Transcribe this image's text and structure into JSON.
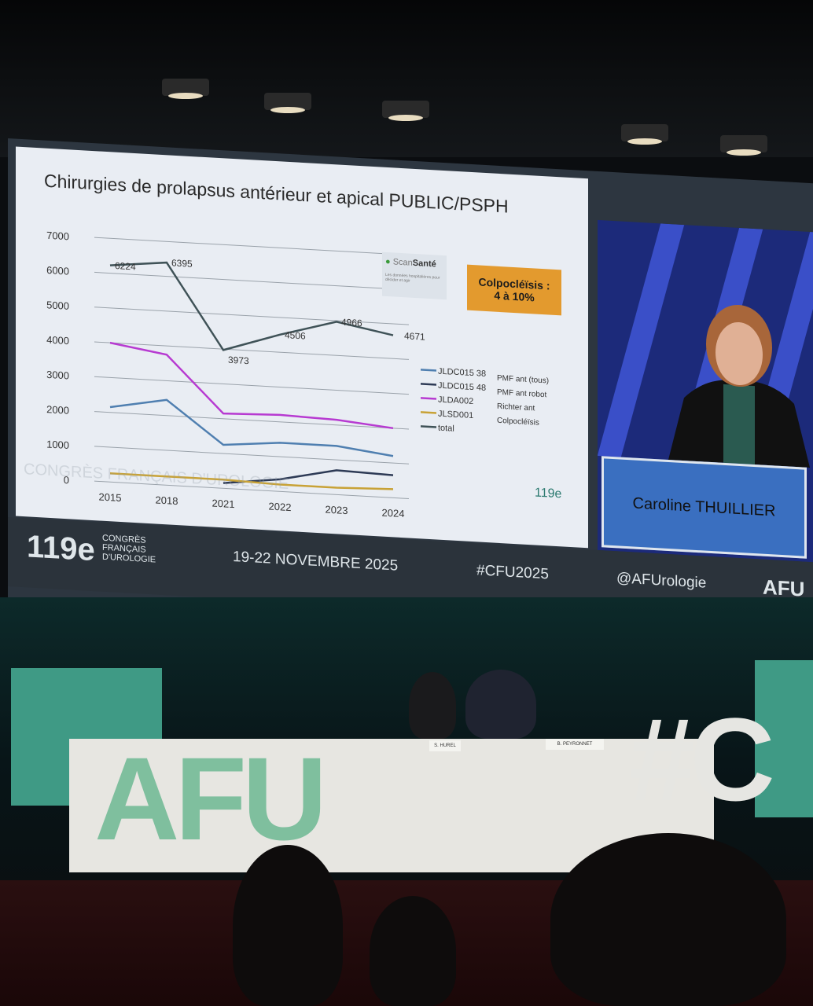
{
  "slide": {
    "title": "Chirurgies de prolapsus antérieur et apical PUBLIC/PSPH",
    "callout": [
      "Colpocléïsis :",
      "4 à 10%"
    ],
    "scansante": {
      "brand_a": "Scan",
      "brand_b": "Santé",
      "tagline": "Les données hospitalières pour décider et agir"
    },
    "watermark": "CONGRÈS FRANÇAIS D'UROLOGIE",
    "logo_small": "119e"
  },
  "chart_data": {
    "type": "line",
    "title": "Chirurgies de prolapsus antérieur et apical PUBLIC/PSPH",
    "categories": [
      "2015",
      "2018",
      "2021",
      "2022",
      "2023",
      "2024"
    ],
    "ylim": [
      0,
      7000
    ],
    "yticks": [
      0,
      1000,
      2000,
      3000,
      4000,
      5000,
      6000,
      7000
    ],
    "grid": true,
    "legend_position": "right",
    "series": [
      {
        "name": "JLDC015 38",
        "desc": "PMF ant (tous)",
        "color": "#4f7fb0",
        "values": [
          2150,
          2450,
          1250,
          1400,
          1400,
          1200
        ]
      },
      {
        "name": "JLDC015 48",
        "desc": "PMF ant robot",
        "color": "#2d3a55",
        "values": [
          null,
          null,
          150,
          350,
          700,
          650
        ]
      },
      {
        "name": "JLDA002",
        "desc": "Richter ant",
        "color": "#b73ad1",
        "values": [
          4000,
          3750,
          2150,
          2200,
          2150,
          2000
        ]
      },
      {
        "name": "JLSD001",
        "desc": "Colpocléïsis",
        "color": "#c8a236",
        "values": [
          250,
          250,
          250,
          200,
          200,
          250
        ]
      },
      {
        "name": "total",
        "desc": "",
        "color": "#3f5257",
        "values": [
          6224,
          6395,
          3973,
          4506,
          4966,
          4671
        ]
      }
    ],
    "data_labels": [
      "6224",
      "6395",
      "3973",
      "4506",
      "4966",
      "4671"
    ]
  },
  "speaker": {
    "name": "Caroline THUILLIER"
  },
  "banner": {
    "edition": "119e",
    "org": [
      "CONGRÈS",
      "FRANÇAIS",
      "D'UROLOGIE"
    ],
    "dates": "19-22 NOVEMBRE 2025",
    "hashtag": "#CFU2025",
    "handle": "@AFUrologie",
    "logo": "AFU"
  },
  "stage": {
    "letters": "AFU",
    "letters_right": "#C",
    "plates": [
      "S. HUREL",
      "B. PEYRONNET"
    ]
  }
}
